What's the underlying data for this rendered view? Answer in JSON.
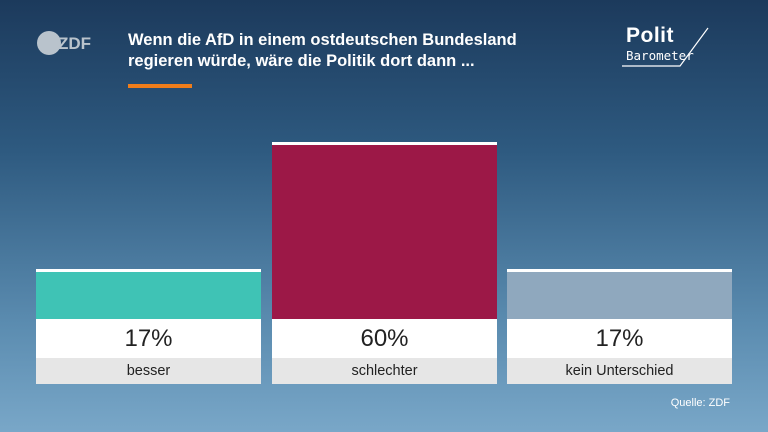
{
  "header": {
    "brand": "ZDF",
    "title_line1": "Wenn die AfD in einem ostdeutschen Bundesland",
    "title_line2": "regieren würde, wäre die Politik dort dann ...",
    "program_logo_line1": "Polit",
    "program_logo_line2": "Barometer",
    "accent_color": "#f07d1a"
  },
  "chart_data": {
    "type": "bar",
    "categories": [
      "besser",
      "schlechter",
      "kein Unterschied"
    ],
    "values": [
      17,
      60,
      17
    ],
    "value_labels": [
      "17%",
      "60%",
      "17%"
    ],
    "colors": [
      "#3fc3b5",
      "#9c1847",
      "#8fa8be"
    ],
    "title": "Wenn die AfD in einem ostdeutschen Bundesland regieren würde, wäre die Politik dort dann ...",
    "xlabel": "",
    "ylabel": "",
    "ylim": [
      0,
      60
    ]
  },
  "footer": {
    "source": "Quelle: ZDF"
  }
}
